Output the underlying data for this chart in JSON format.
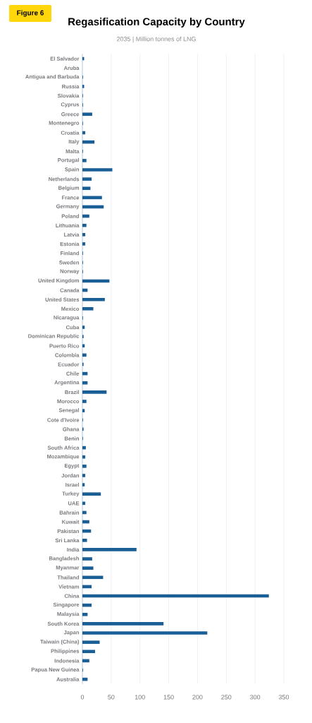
{
  "chart_data": {
    "type": "bar",
    "orientation": "horizontal",
    "title": "Regasification Capacity by Country",
    "subtitle": "2035  |  Million tonnes of LNG",
    "annotations": [
      "Figure 6"
    ],
    "categories": [
      "El Salvador",
      "Aruba",
      "Antigua and Barbuda",
      "Russia",
      "Slovakia",
      "Cyprus",
      "Greece",
      "Montenegro",
      "Croatia",
      "Italy",
      "Malta",
      "Portugal",
      "Spain",
      "Netherlands",
      "Belgium",
      "France",
      "Germany",
      "Poland",
      "Lithuania",
      "Latvia",
      "Estonia",
      "Finland",
      "Sweden",
      "Norway",
      "United Kingdom",
      "Canada",
      "United States",
      "Mexico",
      "Nicaragua",
      "Cuba",
      "Dominican Republic",
      "Puerto Rico",
      "Colombia",
      "Ecuador",
      "Chile",
      "Argentina",
      "Brazil",
      "Morocco",
      "Senegal",
      "Cote d'Ivoire",
      "Ghana",
      "Benin",
      "South Africa",
      "Mozambique",
      "Egypt",
      "Jordan",
      "Israel",
      "Turkey",
      "UAE",
      "Bahrain",
      "Kuwait",
      "Pakistan",
      "Sri Lanka",
      "India",
      "Bangladesh",
      "Myanmar",
      "Thailand",
      "Vietnam",
      "China",
      "Singapore",
      "Malaysia",
      "South Korea",
      "Japan",
      "Taiwain (China)",
      "Philippines",
      "Indonesia",
      "Papua New Guinea",
      "Australia"
    ],
    "values": [
      3,
      0,
      1,
      3,
      1,
      1,
      17,
      1,
      5,
      21,
      1,
      7,
      52,
      16,
      14,
      34,
      37,
      12,
      7,
      5,
      5,
      1,
      1,
      1,
      47,
      9,
      39,
      19,
      1,
      4,
      2,
      4,
      7,
      2,
      9,
      9,
      42,
      7,
      4,
      1,
      2,
      1,
      6,
      5,
      7,
      5,
      4,
      32,
      5,
      7,
      12,
      15,
      8,
      94,
      17,
      19,
      36,
      16,
      324,
      16,
      9,
      141,
      217,
      30,
      22,
      12,
      1,
      9
    ],
    "color": "#1a5e96",
    "xlim": [
      0,
      350
    ],
    "xticks": [
      0,
      50,
      100,
      150,
      200,
      250,
      300,
      350
    ],
    "grid": "x"
  }
}
